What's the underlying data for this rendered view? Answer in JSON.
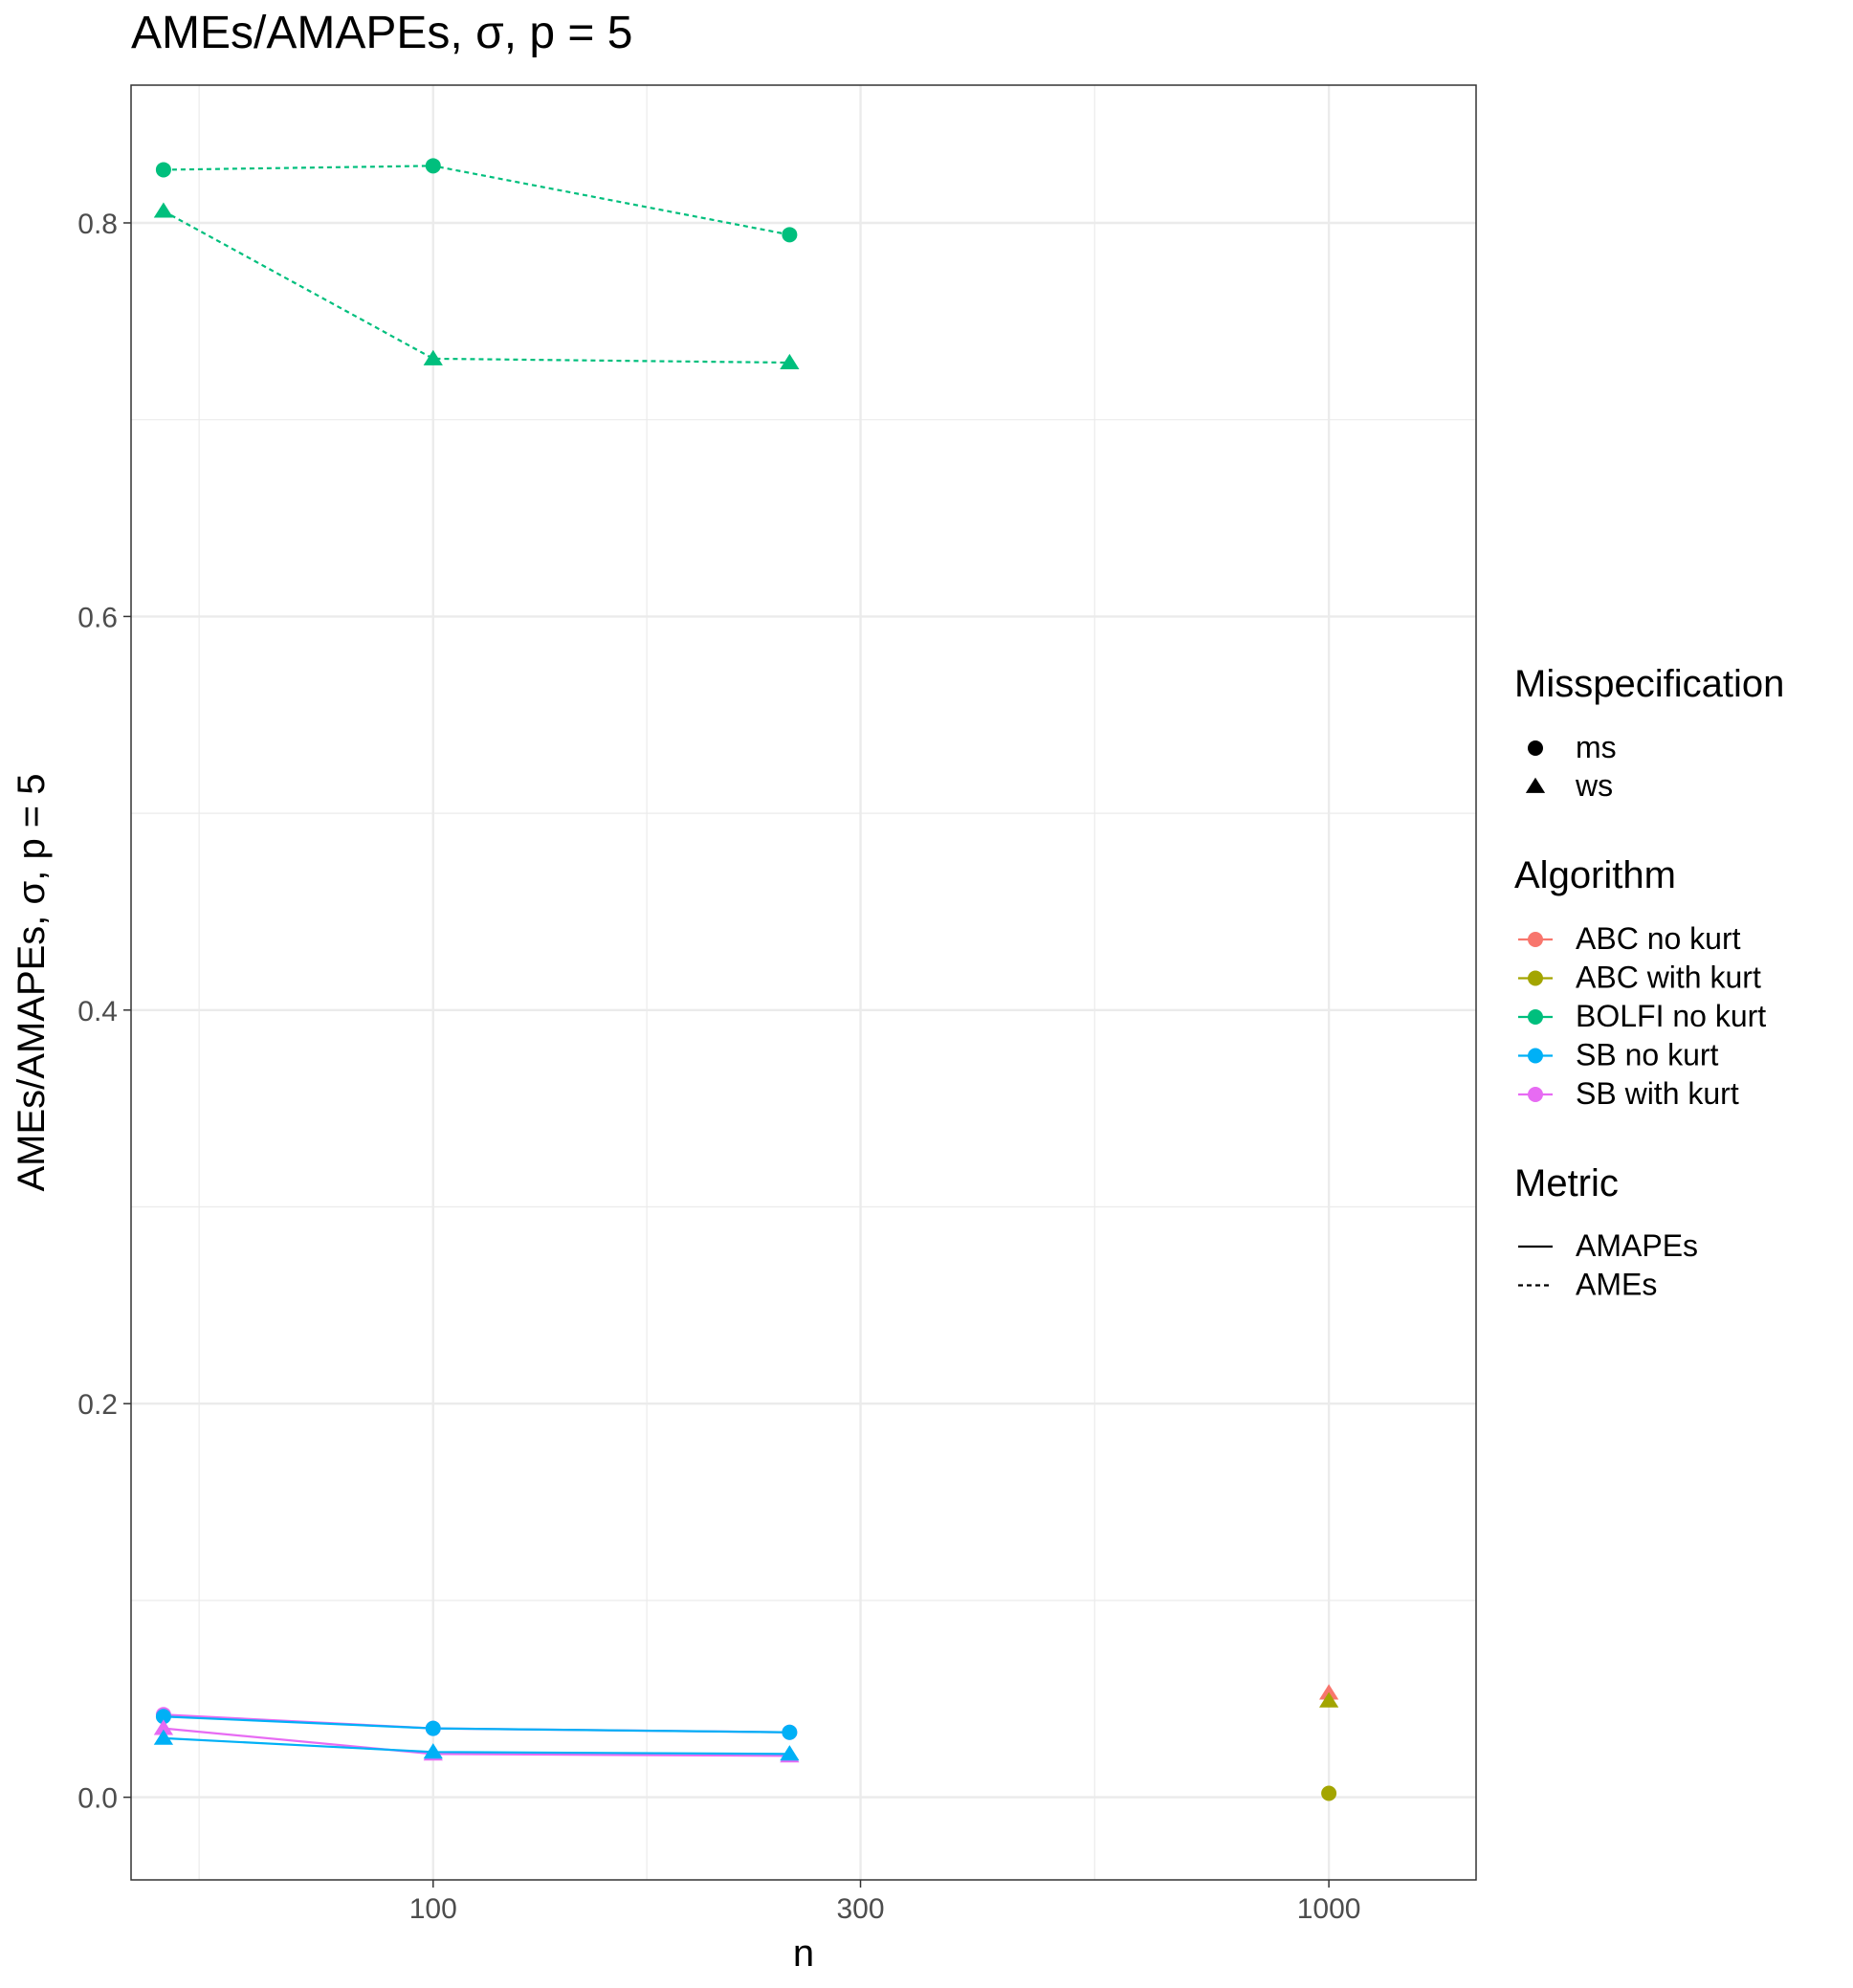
{
  "chart_data": {
    "type": "line",
    "title": "AMEs/AMAPEs, σ, p = 5",
    "xlabel": "n",
    "ylabel": "AMEs/AMAPEs, σ, p = 5",
    "x_scale": "log10",
    "xlim": [
      46,
      1460
    ],
    "ylim": [
      -0.042,
      0.87
    ],
    "x_ticks": [
      {
        "value": 100,
        "label": "100"
      },
      {
        "value": 300,
        "label": "300"
      },
      {
        "value": 1000,
        "label": "1000"
      }
    ],
    "x_minor_ticks": [
      54.8,
      173.2,
      547.7
    ],
    "y_ticks": [
      {
        "value": 0.0,
        "label": "0.0"
      },
      {
        "value": 0.2,
        "label": "0.2"
      },
      {
        "value": 0.4,
        "label": "0.4"
      },
      {
        "value": 0.6,
        "label": "0.6"
      },
      {
        "value": 0.8,
        "label": "0.8"
      }
    ],
    "y_minor_ticks": [
      0.1,
      0.3,
      0.5,
      0.7
    ],
    "grid": true,
    "series": [
      {
        "name": "BOLFI no kurt / ms / AMEs",
        "algorithm": "BOLFI no kurt",
        "shape": "circle",
        "linetype": "dashed",
        "x": [
          50,
          100,
          250
        ],
        "y": [
          0.827,
          0.829,
          0.794
        ]
      },
      {
        "name": "BOLFI no kurt / ws / AMEs",
        "algorithm": "BOLFI no kurt",
        "shape": "triangle",
        "linetype": "dashed",
        "x": [
          50,
          100,
          250
        ],
        "y": [
          0.806,
          0.731,
          0.729
        ]
      },
      {
        "name": "SB with kurt / ms / AMAPEs",
        "algorithm": "SB with kurt",
        "shape": "circle",
        "linetype": "solid",
        "x": [
          50,
          100,
          250
        ],
        "y": [
          0.042,
          0.035,
          0.033
        ]
      },
      {
        "name": "SB no kurt / ms / AMAPEs",
        "algorithm": "SB no kurt",
        "shape": "circle",
        "linetype": "solid",
        "x": [
          50,
          100,
          250
        ],
        "y": [
          0.041,
          0.035,
          0.033
        ]
      },
      {
        "name": "SB with kurt / ws / AMAPEs",
        "algorithm": "SB with kurt",
        "shape": "triangle",
        "linetype": "solid",
        "x": [
          50,
          100,
          250
        ],
        "y": [
          0.035,
          0.022,
          0.021
        ]
      },
      {
        "name": "SB no kurt / ws / AMAPEs",
        "algorithm": "SB no kurt",
        "shape": "triangle",
        "linetype": "solid",
        "x": [
          50,
          100,
          250
        ],
        "y": [
          0.03,
          0.023,
          0.022
        ]
      },
      {
        "name": "ABC no kurt / ws",
        "algorithm": "ABC no kurt",
        "shape": "triangle",
        "linetype": "none",
        "x": [
          1000
        ],
        "y": [
          0.053
        ]
      },
      {
        "name": "ABC with kurt / ws",
        "algorithm": "ABC with kurt",
        "shape": "triangle",
        "linetype": "none",
        "x": [
          1000
        ],
        "y": [
          0.049
        ]
      },
      {
        "name": "ABC with kurt / ms",
        "algorithm": "ABC with kurt",
        "shape": "circle",
        "linetype": "none",
        "x": [
          1000
        ],
        "y": [
          0.002
        ]
      }
    ],
    "legend": {
      "placement": "right",
      "misspecification": {
        "title": "Misspecification",
        "items": [
          {
            "label": "ms",
            "shape": "circle"
          },
          {
            "label": "ws",
            "shape": "triangle"
          }
        ]
      },
      "algorithm": {
        "title": "Algorithm",
        "items": [
          {
            "label": "ABC no kurt",
            "color": "#F8766D"
          },
          {
            "label": "ABC with kurt",
            "color": "#A3A500"
          },
          {
            "label": "BOLFI no kurt",
            "color": "#00BF7D"
          },
          {
            "label": "SB no kurt",
            "color": "#00B0F6"
          },
          {
            "label": "SB with kurt",
            "color": "#E76BF3"
          }
        ]
      },
      "metric": {
        "title": "Metric",
        "items": [
          {
            "label": "AMAPEs",
            "linetype": "solid"
          },
          {
            "label": "AMEs",
            "linetype": "dashed"
          }
        ]
      }
    }
  }
}
